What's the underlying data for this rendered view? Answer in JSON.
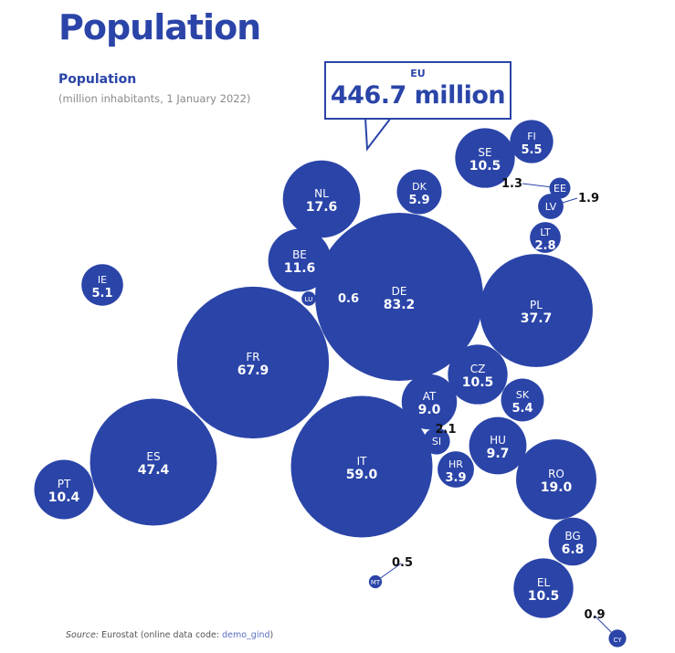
{
  "header": {
    "title": "Population",
    "subtitle": "Population",
    "unit_note": "(million inhabitants, 1 January 2022)"
  },
  "callout": {
    "label": "EU",
    "value": "446.7 million"
  },
  "source": {
    "prefix": "Source:",
    "text": " Eurostat (online data code: ",
    "code": "demo_gind",
    "suffix": ")"
  },
  "colors": {
    "bubble": "#2a44a8",
    "bubble_text": "#ffffff",
    "outside_label": "#111111",
    "leader_line": "#2a44a8"
  },
  "chart_data": {
    "type": "bubble",
    "title": "Population",
    "subtitle": "(million inhabitants, 1 January 2022)",
    "total": {
      "label": "EU",
      "value": 446.7,
      "unit": "million"
    },
    "categories": [
      "DE",
      "FR",
      "IT",
      "ES",
      "PL",
      "RO",
      "NL",
      "BE",
      "SE",
      "CZ",
      "EL",
      "PT",
      "HU",
      "AT",
      "BG",
      "DK",
      "FI",
      "SK",
      "IE",
      "HR",
      "LT",
      "SI",
      "LV",
      "EE",
      "CY",
      "LU",
      "MT"
    ],
    "values": [
      83.2,
      67.9,
      59.0,
      47.4,
      37.7,
      19.0,
      17.6,
      11.6,
      10.5,
      10.5,
      10.5,
      10.4,
      9.7,
      9.0,
      6.8,
      5.9,
      5.5,
      5.4,
      5.1,
      3.9,
      2.8,
      2.1,
      1.9,
      1.3,
      0.9,
      0.6,
      0.5
    ],
    "display_values": [
      "83.2",
      "67.9",
      "59.0",
      "47.4",
      "37.7",
      "19.0",
      "17.6",
      "11.6",
      "10.5",
      "10.5",
      "10.5",
      "10.4",
      "9.7",
      "9.0",
      "6.8",
      "5.9",
      "5.5",
      "5.4",
      "5.1",
      "3.9",
      "2.8",
      "2.1",
      "1.9",
      "1.3",
      "0.9",
      "0.6",
      "0.5"
    ],
    "outside_labels": [
      "SI",
      "LV",
      "EE",
      "CY",
      "LU",
      "MT"
    ],
    "size_encoding": "area proportional to value"
  }
}
